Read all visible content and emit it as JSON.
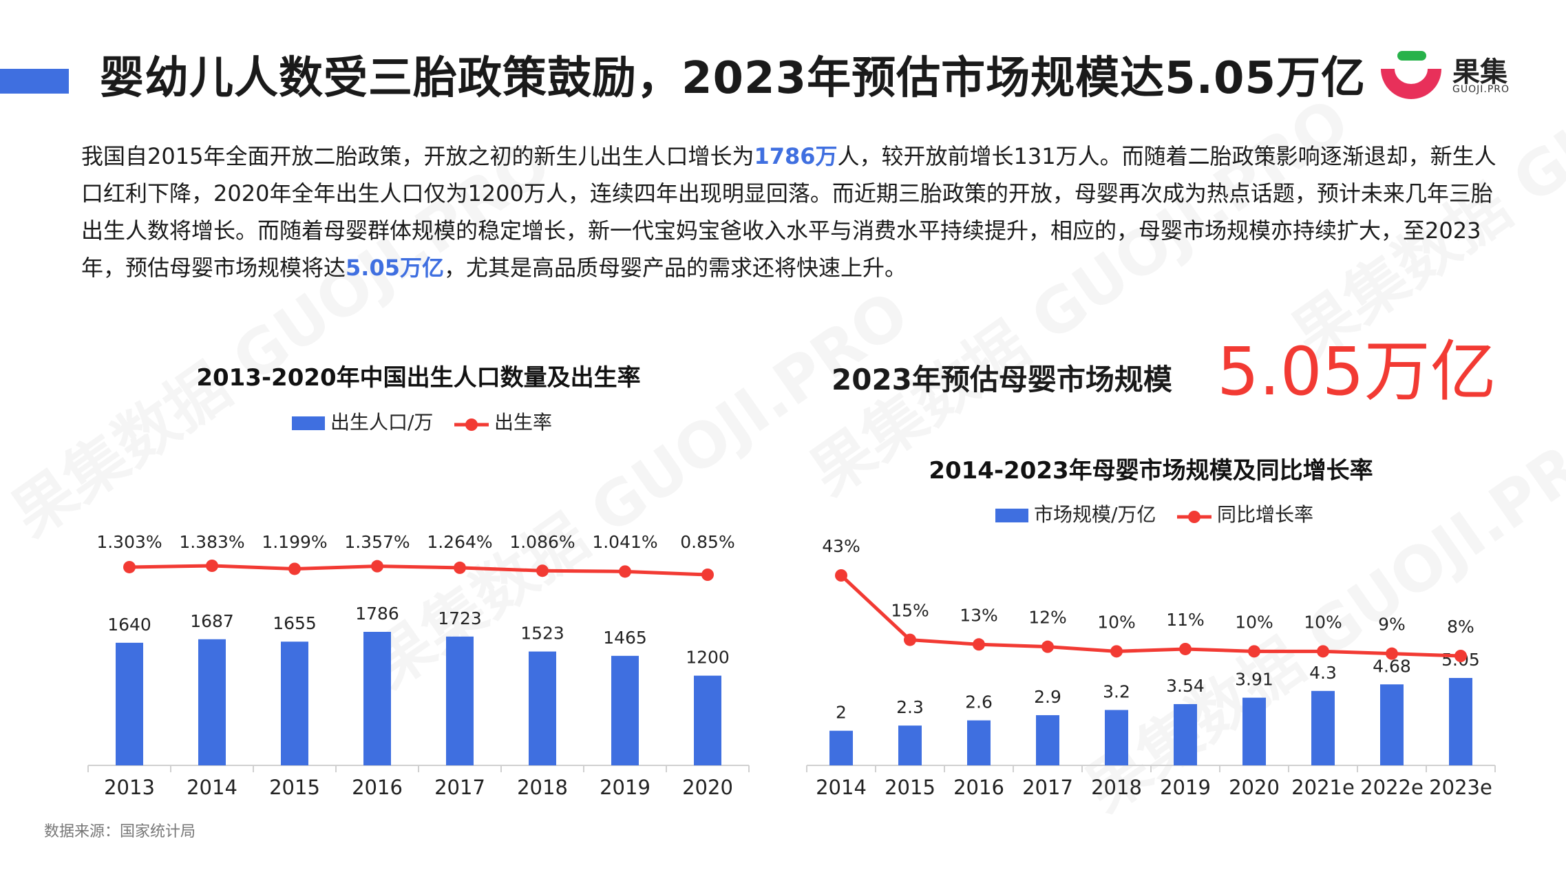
{
  "header": {
    "title": "婴幼儿人数受三胎政策鼓励，2023年预估市场规模达5.05万亿",
    "logo_cn": "果集",
    "logo_en": "GUOJI.PRO"
  },
  "intro": {
    "p1": "我国自2015年全面开放二胎政策，开放之初的新生儿出生人口增长为",
    "h1": "1786万",
    "p2": "人，较开放前增长131万人。而随着二胎政策影响逐渐退却，新生人口红利下降，2020年全年出生人口仅为1200万人，连续四年出现明显回落。而近期三胎政策的开放，母婴再次成为热点话题，预计未来几年三胎出生人数将增长。而随着母婴群体规模的稳定增长，新一代宝妈宝爸收入水平与消费水平持续提升，相应的，母婴市场规模亦持续扩大，至2023年，预估母婴市场规模将达",
    "h2": "5.05万亿",
    "p3": "，尤其是高品质母婴产品的需求还将快速上升。"
  },
  "highlight": {
    "label": "2023年预估母婴市场规模",
    "value": "5.05万亿"
  },
  "source": "数据来源：国家统计局",
  "watermark": "果集数据 GUOJI.PRO",
  "colors": {
    "bar": "#3f6fe0",
    "line": "#f23a33",
    "accent": "#3f6fe0"
  },
  "chart_data": [
    {
      "type": "bar",
      "title": "2013-2020年中国出生人口数量及出生率",
      "categories": [
        "2013",
        "2014",
        "2015",
        "2016",
        "2017",
        "2018",
        "2019",
        "2020"
      ],
      "series": [
        {
          "name": "出生人口/万",
          "kind": "bar",
          "values": [
            1640,
            1687,
            1655,
            1786,
            1723,
            1523,
            1465,
            1200
          ],
          "labels": [
            "1640",
            "1687",
            "1655",
            "1786",
            "1723",
            "1523",
            "1465",
            "1200"
          ]
        },
        {
          "name": "出生率",
          "kind": "line",
          "values": [
            1.303,
            1.383,
            1.199,
            1.357,
            1.264,
            1.086,
            1.041,
            0.85
          ],
          "labels": [
            "1.303%",
            "1.383%",
            "1.199%",
            "1.357%",
            "1.264%",
            "1.086%",
            "1.041%",
            "0.85%"
          ]
        }
      ],
      "legend": "top"
    },
    {
      "type": "bar",
      "title": "2014-2023年母婴市场规模及同比增长率",
      "categories": [
        "2014",
        "2015",
        "2016",
        "2017",
        "2018",
        "2019",
        "2020",
        "2021e",
        "2022e",
        "2023e"
      ],
      "series": [
        {
          "name": "市场规模/万亿",
          "kind": "bar",
          "values": [
            2,
            2.3,
            2.6,
            2.9,
            3.2,
            3.54,
            3.91,
            4.3,
            4.68,
            5.05
          ],
          "labels": [
            "2",
            "2.3",
            "2.6",
            "2.9",
            "3.2",
            "3.54",
            "3.91",
            "4.3",
            "4.68",
            "5.05"
          ]
        },
        {
          "name": "同比增长率",
          "kind": "line",
          "values": [
            43,
            15,
            13,
            12,
            10,
            11,
            10,
            10,
            9,
            8
          ],
          "labels": [
            "43%",
            "15%",
            "13%",
            "12%",
            "10%",
            "11%",
            "10%",
            "10%",
            "9%",
            "8%"
          ]
        }
      ],
      "legend": "top"
    }
  ]
}
